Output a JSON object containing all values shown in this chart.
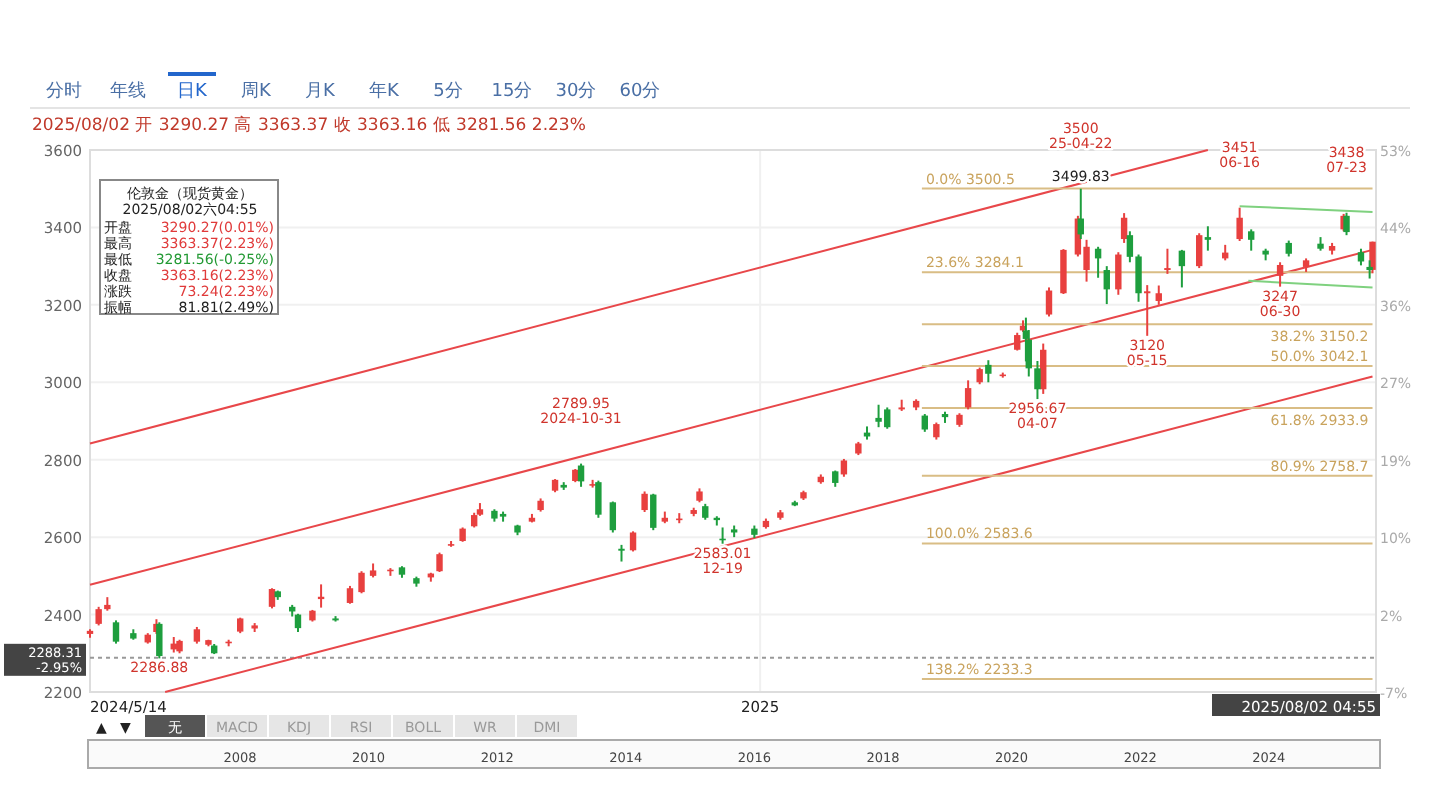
{
  "chart_data": {
    "type": "candlestick",
    "title": "2025/08/02 开 3290.27 高 3363.37 收 3363.16 低 3281.56 2.23%",
    "xlim": [
      "2024-05-14",
      "2025-08-02T04:55"
    ],
    "xticks": [
      {
        "value": "2024-05-14",
        "label": "2024/5/14"
      },
      {
        "value": "2025-01-01",
        "label": "2025"
      },
      {
        "value": "2025-08-02T04:55",
        "label": "2025/08/02 04:55"
      }
    ],
    "ylim": [
      2200,
      3600
    ],
    "yticks": [
      2200,
      2400,
      2600,
      2800,
      3000,
      3200,
      3400,
      3600
    ],
    "y2lim": [
      -7,
      53
    ],
    "y2ticks": [
      {
        "value": -7,
        "label": "-7%"
      },
      {
        "value": 1.571,
        "label": "2%"
      },
      {
        "value": 10.14,
        "label": "10%"
      },
      {
        "value": 18.71,
        "label": "19%"
      },
      {
        "value": 27.29,
        "label": "27%"
      },
      {
        "value": 35.86,
        "label": "36%"
      },
      {
        "value": 44.43,
        "label": "44%"
      },
      {
        "value": 53,
        "label": "53%"
      }
    ],
    "grid": true,
    "ref_lines": [
      {
        "axis": "y",
        "value": 2288.31,
        "label": "2288.31\n-2.95%",
        "color": "#999999",
        "line_style": "dotted"
      }
    ],
    "series": [
      {
        "type": "line",
        "color": "#e8474a",
        "x": [
          "2024-05-14",
          "2025-06-05"
        ],
        "values": [
          2842,
          3600
        ]
      },
      {
        "type": "line",
        "color": "#e8474a",
        "x": [
          "2024-05-14",
          "2025-08-01"
        ],
        "values": [
          2477,
          3342
        ]
      },
      {
        "type": "line",
        "color": "#e8474a",
        "x": [
          "2024-06-09",
          "2025-08-01"
        ],
        "values": [
          2200,
          3015
        ]
      },
      {
        "type": "line",
        "color": "#7fd17f",
        "x": [
          "2025-06-16",
          "2025-08-01"
        ],
        "values": [
          3455,
          3440
        ]
      },
      {
        "type": "line",
        "color": "#7fd17f",
        "x": [
          "2025-06-19",
          "2025-08-01"
        ],
        "values": [
          3262,
          3245
        ]
      },
      {
        "type": "line",
        "name": "0.0% 3500.5",
        "color": "#d9bd85",
        "x": [
          "2025-02-26",
          "2025-08-01"
        ],
        "values": [
          3500.5,
          3500.5
        ]
      },
      {
        "type": "line",
        "name": "23.6% 3284.1",
        "color": "#d9bd85",
        "x": [
          "2025-02-26",
          "2025-08-01"
        ],
        "values": [
          3284.1,
          3284.1
        ]
      },
      {
        "type": "line",
        "name": "38.2% 3150.2",
        "color": "#d9bd85",
        "x": [
          "2025-02-26",
          "2025-08-01"
        ],
        "values": [
          3150.2,
          3150.2
        ]
      },
      {
        "type": "line",
        "name": "50.0% 3042.1",
        "color": "#d9bd85",
        "x": [
          "2025-02-26",
          "2025-08-01"
        ],
        "values": [
          3042.1,
          3042.1
        ]
      },
      {
        "type": "line",
        "name": "61.8% 2933.9",
        "color": "#d9bd85",
        "x": [
          "2025-02-26",
          "2025-08-01"
        ],
        "values": [
          2933.9,
          2933.9
        ]
      },
      {
        "type": "line",
        "name": "80.9% 2758.7",
        "color": "#d9bd85",
        "x": [
          "2025-02-26",
          "2025-08-01"
        ],
        "values": [
          2758.7,
          2758.7
        ]
      },
      {
        "type": "line",
        "name": "100.0% 2583.6",
        "color": "#d9bd85",
        "x": [
          "2025-02-26",
          "2025-08-01"
        ],
        "values": [
          2583.6,
          2583.6
        ]
      },
      {
        "type": "line",
        "name": "138.2% 2233.3",
        "color": "#d9bd85",
        "x": [
          "2025-02-26",
          "2025-08-01"
        ],
        "values": [
          2233.3,
          2233.3
        ]
      },
      {
        "color": "#e8403f",
        "x": [
          "2024-05-14",
          "2024-05-17",
          "2024-05-20",
          "2024-06-03",
          "2024-06-06",
          "2024-06-12",
          "2024-06-14",
          "2024-06-20",
          "2024-06-24",
          "2024-07-01",
          "2024-07-05",
          "2024-07-10",
          "2024-07-16",
          "2024-07-30",
          "2024-08-02",
          "2024-08-12",
          "2024-08-16",
          "2024-08-20",
          "2024-08-26",
          "2024-09-09",
          "2024-09-12",
          "2024-09-16",
          "2024-09-20",
          "2024-09-24",
          "2024-09-26",
          "2024-10-14",
          "2024-10-17",
          "2024-10-22",
          "2024-10-29",
          "2024-11-04",
          "2024-11-18",
          "2024-11-22",
          "2024-11-29",
          "2024-12-04",
          "2024-12-09",
          "2024-12-11",
          "2025-01-03",
          "2025-01-08",
          "2025-01-16",
          "2025-01-22",
          "2025-01-30",
          "2025-02-04",
          "2025-02-19",
          "2025-02-24",
          "2025-03-03",
          "2025-03-11",
          "2025-03-14",
          "2025-03-18",
          "2025-03-26",
          "2025-03-31",
          "2025-04-02",
          "2025-04-09",
          "2025-04-11",
          "2025-04-16",
          "2025-04-21",
          "2025-04-24",
          "2025-05-05",
          "2025-05-07",
          "2025-05-15",
          "2025-05-19",
          "2025-05-22",
          "2025-06-02",
          "2025-06-11",
          "2025-06-16",
          "2025-06-30",
          "2025-07-09",
          "2025-07-18",
          "2025-07-22",
          "2025-08-01"
        ],
        "ohlc": [
          [
            2350,
            2362,
            2340,
            2358
          ],
          [
            2376,
            2420,
            2372,
            2414
          ],
          [
            2414,
            2445,
            2410,
            2425
          ],
          [
            2328,
            2352,
            2325,
            2348
          ],
          [
            2355,
            2388,
            2350,
            2376
          ],
          [
            2310,
            2342,
            2302,
            2325
          ],
          [
            2305,
            2335,
            2300,
            2332
          ],
          [
            2330,
            2368,
            2325,
            2362
          ],
          [
            2322,
            2335,
            2318,
            2334
          ],
          [
            2326,
            2335,
            2318,
            2330
          ],
          [
            2356,
            2392,
            2352,
            2390
          ],
          [
            2364,
            2378,
            2355,
            2372
          ],
          [
            2420,
            2468,
            2416,
            2466
          ],
          [
            2385,
            2412,
            2382,
            2410
          ],
          [
            2440,
            2478,
            2418,
            2446
          ],
          [
            2430,
            2474,
            2428,
            2468
          ],
          [
            2458,
            2512,
            2455,
            2508
          ],
          [
            2500,
            2532,
            2496,
            2514
          ],
          [
            2512,
            2520,
            2500,
            2516
          ],
          [
            2496,
            2508,
            2485,
            2506
          ],
          [
            2512,
            2560,
            2510,
            2556
          ],
          [
            2578,
            2590,
            2575,
            2582
          ],
          [
            2590,
            2625,
            2588,
            2622
          ],
          [
            2628,
            2663,
            2625,
            2657
          ],
          [
            2658,
            2688,
            2655,
            2672
          ],
          [
            2640,
            2660,
            2638,
            2650
          ],
          [
            2670,
            2700,
            2666,
            2694
          ],
          [
            2720,
            2750,
            2716,
            2748
          ],
          [
            2745,
            2776,
            2742,
            2774
          ],
          [
            2734,
            2748,
            2728,
            2737
          ],
          [
            2566,
            2615,
            2563,
            2612
          ],
          [
            2670,
            2718,
            2665,
            2712
          ],
          [
            2640,
            2666,
            2636,
            2650
          ],
          [
            2644,
            2662,
            2636,
            2648
          ],
          [
            2660,
            2676,
            2654,
            2670
          ],
          [
            2694,
            2726,
            2690,
            2718
          ],
          [
            2626,
            2648,
            2622,
            2642
          ],
          [
            2650,
            2670,
            2645,
            2664
          ],
          [
            2700,
            2720,
            2696,
            2716
          ],
          [
            2742,
            2762,
            2738,
            2756
          ],
          [
            2762,
            2802,
            2756,
            2798
          ],
          [
            2816,
            2846,
            2812,
            2842
          ],
          [
            2930,
            2955,
            2926,
            2935
          ],
          [
            2935,
            2956,
            2928,
            2952
          ],
          [
            2858,
            2896,
            2852,
            2892
          ],
          [
            2890,
            2920,
            2885,
            2916
          ],
          [
            2935,
            3005,
            2930,
            2985
          ],
          [
            3000,
            3038,
            2995,
            3034
          ],
          [
            3018,
            3025,
            3012,
            3020
          ],
          [
            3084,
            3128,
            3082,
            3122
          ],
          [
            3134,
            3160,
            3130,
            3146
          ],
          [
            2982,
            3100,
            2970,
            3084
          ],
          [
            3175,
            3245,
            3170,
            3237
          ],
          [
            3230,
            3344,
            3228,
            3342
          ],
          [
            3330,
            3430,
            3325,
            3423
          ],
          [
            3290,
            3368,
            3260,
            3350
          ],
          [
            3240,
            3336,
            3226,
            3330
          ],
          [
            3370,
            3437,
            3360,
            3425
          ],
          [
            3230,
            3251,
            3120,
            3235
          ],
          [
            3210,
            3250,
            3200,
            3230
          ],
          [
            3290,
            3345,
            3280,
            3295
          ],
          [
            3300,
            3385,
            3295,
            3380
          ],
          [
            3320,
            3355,
            3315,
            3335
          ],
          [
            3370,
            3451,
            3365,
            3425
          ],
          [
            3275,
            3310,
            3247,
            3303
          ],
          [
            3298,
            3320,
            3285,
            3315
          ],
          [
            3340,
            3360,
            3330,
            3352
          ],
          [
            3395,
            3435,
            3390,
            3430
          ],
          [
            3290.27,
            3363.37,
            3281.56,
            3363.16
          ]
        ]
      },
      {
        "color": "#1e9e3e",
        "x": [
          "2024-05-23",
          "2024-05-29",
          "2024-06-07",
          "2024-06-26",
          "2024-07-18",
          "2024-07-23",
          "2024-07-25",
          "2024-08-07",
          "2024-08-30",
          "2024-09-04",
          "2024-10-01",
          "2024-10-04",
          "2024-10-09",
          "2024-10-25",
          "2024-10-31",
          "2024-11-06",
          "2024-11-11",
          "2024-11-14",
          "2024-11-25",
          "2024-12-13",
          "2024-12-17",
          "2024-12-19",
          "2024-12-23",
          "2024-12-30",
          "2025-01-13",
          "2025-01-27",
          "2025-02-07",
          "2025-02-11",
          "2025-02-14",
          "2025-02-27",
          "2025-03-06",
          "2025-03-21",
          "2025-04-03",
          "2025-04-04",
          "2025-04-07",
          "2025-04-22",
          "2025-04-28",
          "2025-05-01",
          "2025-05-09",
          "2025-05-12",
          "2025-05-27",
          "2025-06-05",
          "2025-06-20",
          "2025-06-25",
          "2025-07-03",
          "2025-07-14",
          "2025-07-23",
          "2025-07-28",
          "2025-07-31"
        ],
        "ohlc": [
          [
            2380,
            2385,
            2325,
            2330
          ],
          [
            2352,
            2362,
            2335,
            2338
          ],
          [
            2376,
            2380,
            2286.88,
            2293
          ],
          [
            2320,
            2324,
            2298,
            2300
          ],
          [
            2460,
            2462,
            2438,
            2445
          ],
          [
            2420,
            2425,
            2395,
            2408
          ],
          [
            2400,
            2402,
            2355,
            2365
          ],
          [
            2390,
            2396,
            2382,
            2385
          ],
          [
            2522,
            2525,
            2495,
            2503
          ],
          [
            2494,
            2498,
            2472,
            2480
          ],
          [
            2668,
            2672,
            2640,
            2648
          ],
          [
            2660,
            2666,
            2640,
            2653
          ],
          [
            2630,
            2632,
            2605,
            2612
          ],
          [
            2735,
            2742,
            2722,
            2728
          ],
          [
            2785,
            2789.95,
            2730,
            2744
          ],
          [
            2742,
            2746,
            2650,
            2658
          ],
          [
            2690,
            2692,
            2612,
            2618
          ],
          [
            2570,
            2580,
            2537,
            2565
          ],
          [
            2710,
            2712,
            2618,
            2624
          ],
          [
            2680,
            2686,
            2645,
            2650
          ],
          [
            2650,
            2654,
            2630,
            2644
          ],
          [
            2596,
            2625,
            2583.01,
            2594
          ],
          [
            2620,
            2630,
            2600,
            2612
          ],
          [
            2622,
            2630,
            2598,
            2606
          ],
          [
            2690,
            2694,
            2680,
            2682
          ],
          [
            2770,
            2772,
            2730,
            2740
          ],
          [
            2870,
            2886,
            2852,
            2860
          ],
          [
            2908,
            2942,
            2884,
            2898
          ],
          [
            2930,
            2935,
            2880,
            2884
          ],
          [
            2914,
            2918,
            2872,
            2878
          ],
          [
            2918,
            2924,
            2895,
            2910
          ],
          [
            3045,
            3057,
            3000,
            3022
          ],
          [
            3134,
            3167,
            3054,
            3112
          ],
          [
            3110,
            3135,
            3015,
            3036
          ],
          [
            3036,
            3055,
            2956.67,
            2982
          ],
          [
            3423,
            3500,
            3370,
            3382
          ],
          [
            3345,
            3350,
            3270,
            3320
          ],
          [
            3290,
            3300,
            3202,
            3240
          ],
          [
            3380,
            3390,
            3310,
            3324
          ],
          [
            3325,
            3330,
            3208,
            3230
          ],
          [
            3340,
            3342,
            3245,
            3300
          ],
          [
            3375,
            3403,
            3340,
            3368
          ],
          [
            3390,
            3395,
            3340,
            3368
          ],
          [
            3340,
            3345,
            3315,
            3330
          ],
          [
            3360,
            3366,
            3325,
            3332
          ],
          [
            3358,
            3375,
            3340,
            3345
          ],
          [
            3430,
            3438,
            3380,
            3388
          ],
          [
            3336,
            3345,
            3302,
            3312
          ],
          [
            3298,
            3315,
            3268,
            3290
          ]
        ]
      }
    ],
    "annotations": [
      "分时",
      "年线",
      "日K",
      "周K",
      "月K",
      "年K",
      "5分",
      "15分",
      "30分",
      "60分",
      "伦敦金（现货黄金）",
      "2025/08/02六04:55",
      "开盘",
      "最高",
      "最低",
      "收盘",
      "涨跌",
      "振幅",
      "3290.27(0.01%)",
      "3363.37(2.23%)",
      "3281.56(-0.25%)",
      "3363.16(2.23%)",
      "73.24(2.23%)",
      "81.81(2.49%)",
      "无",
      "MACD",
      "KDJ",
      "RSI",
      "BOLL",
      "WR",
      "DMI",
      "2008",
      "2010",
      "2012",
      "2014",
      "2016",
      "2018",
      "2020",
      "2022",
      "2024",
      "▲",
      "▼",
      {
        "text": "2286.88",
        "x": "2024-06-07",
        "y": 2286.88
      },
      {
        "text": "2789.95\n2024-10-31",
        "x": "2024-10-31",
        "y": 2789.95
      },
      {
        "text": "2583.01\n12-19",
        "x": "2024-12-19",
        "y": 2583.01
      },
      {
        "text": "2956.67\n04-07",
        "x": "2025-04-07",
        "y": 2956.67
      },
      {
        "text": "3500\n25-04-22",
        "x": "2025-04-22",
        "y": 3500
      },
      {
        "text": "3499.83",
        "x": "2025-04-22",
        "y": 3499.83
      },
      {
        "text": "3120\n05-15",
        "x": "2025-05-15",
        "y": 3120
      },
      {
        "text": "3451\n06-16",
        "x": "2025-06-16",
        "y": 3451
      },
      {
        "text": "3247\n06-30",
        "x": "2025-06-30",
        "y": 3247
      },
      {
        "text": "3438\n07-23",
        "x": "2025-07-23",
        "y": 3438
      }
    ]
  }
}
